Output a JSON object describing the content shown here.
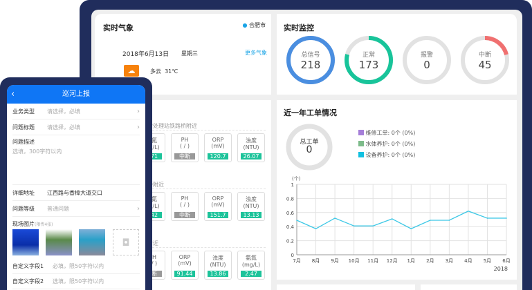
{
  "weather": {
    "title": "实时气象",
    "location": "合肥市",
    "date": "2018年6月13日",
    "weekday": "星期三",
    "more": "更多气象",
    "condition": "多云",
    "temp": "31℃",
    "icon": "partly-cloudy-icon"
  },
  "monitor": {
    "title": "实时监控",
    "gauges": [
      {
        "label": "总信号",
        "value": "218",
        "fraction": 1.0,
        "color": "#4a8ee0"
      },
      {
        "label": "正常",
        "value": "173",
        "fraction": 0.79,
        "color": "#18c49a"
      },
      {
        "label": "报警",
        "value": "0",
        "fraction": 0,
        "color": "#e06060"
      },
      {
        "label": "中断",
        "value": "45",
        "fraction": 0.21,
        "color": "#f07070"
      }
    ]
  },
  "stations": [
    {
      "name": "…污处理站铁路桥附近",
      "sensors": [
        {
          "name": "…氮",
          "unit": "…g/L)",
          "value": "…71",
          "off": false
        },
        {
          "name": "PH",
          "unit": "( / )",
          "value": "中断",
          "off": true
        },
        {
          "name": "ORP",
          "unit": "(mV)",
          "value": "120.7",
          "off": false
        },
        {
          "name": "浊度",
          "unit": "(NTU)",
          "value": "26.07",
          "off": false
        }
      ]
    },
    {
      "name": "…桥附近",
      "sensors": [
        {
          "name": "…氮",
          "unit": "…g/L)",
          "value": "…42",
          "off": false
        },
        {
          "name": "PH",
          "unit": "( / )",
          "value": "中断",
          "off": true
        },
        {
          "name": "ORP",
          "unit": "(mV)",
          "value": "151.7",
          "off": false
        },
        {
          "name": "浊度",
          "unit": "(NTU)",
          "value": "13.13",
          "off": false
        }
      ]
    },
    {
      "name": "…附近",
      "sensors": [
        {
          "name": "…H",
          "unit": "…/ )",
          "value": "…断",
          "off": true
        },
        {
          "name": "ORP",
          "unit": "(mV)",
          "value": "91.44",
          "off": false
        },
        {
          "name": "浊度",
          "unit": "(NTU)",
          "value": "13.86",
          "off": false
        },
        {
          "name": "氨氮",
          "unit": "(mg/L)",
          "value": "2.47",
          "off": false
        }
      ]
    }
  ],
  "workorders": {
    "title": "近一年工单情况",
    "total_label": "总工单",
    "total": "0",
    "legend": [
      {
        "label": "维修工单:",
        "value": "0个 (0%)",
        "color": "#a57ed8"
      },
      {
        "label": "水体养护:",
        "value": "0个 (0%)",
        "color": "#7dbb8a"
      },
      {
        "label": "设备养护:",
        "value": "0个 (0%)",
        "color": "#12c0e0"
      }
    ]
  },
  "chart_data": {
    "type": "line",
    "ylabel": "(个)",
    "ylim": [
      0,
      1
    ],
    "yticks": [
      "0",
      "0.2",
      "0.4",
      "0.6",
      "0.8",
      "1"
    ],
    "categories": [
      "7月",
      "8月",
      "9月",
      "10月",
      "11月",
      "12月",
      "1月",
      "2月",
      "3月",
      "4月",
      "5月",
      "6月"
    ],
    "values": [
      0.49,
      0.37,
      0.52,
      0.41,
      0.41,
      0.51,
      0.37,
      0.49,
      0.49,
      0.62,
      0.52,
      0.52
    ],
    "year_label": "2018",
    "grid": true,
    "color": "#3cc8e6"
  },
  "phone": {
    "title": "巡河上报",
    "fields": [
      {
        "label": "业务类型",
        "placeholder": "请选择，必填"
      },
      {
        "label": "问题标题",
        "placeholder": "请选择，必填"
      }
    ],
    "desc_label": "问题描述",
    "desc_placeholder": "选填，300字符以内",
    "address_label": "详细地址",
    "address_value": "江西路与香樟大道交口",
    "level_label": "问题等级",
    "level_value": "普通问题",
    "photos_label": "现场图片",
    "photos_hint": "(限传4张)",
    "custom": [
      {
        "label": "自定义字段1",
        "placeholder": "必填，限50字符以内"
      },
      {
        "label": "自定义字段2",
        "placeholder": "选填，限50字符以内"
      }
    ]
  }
}
